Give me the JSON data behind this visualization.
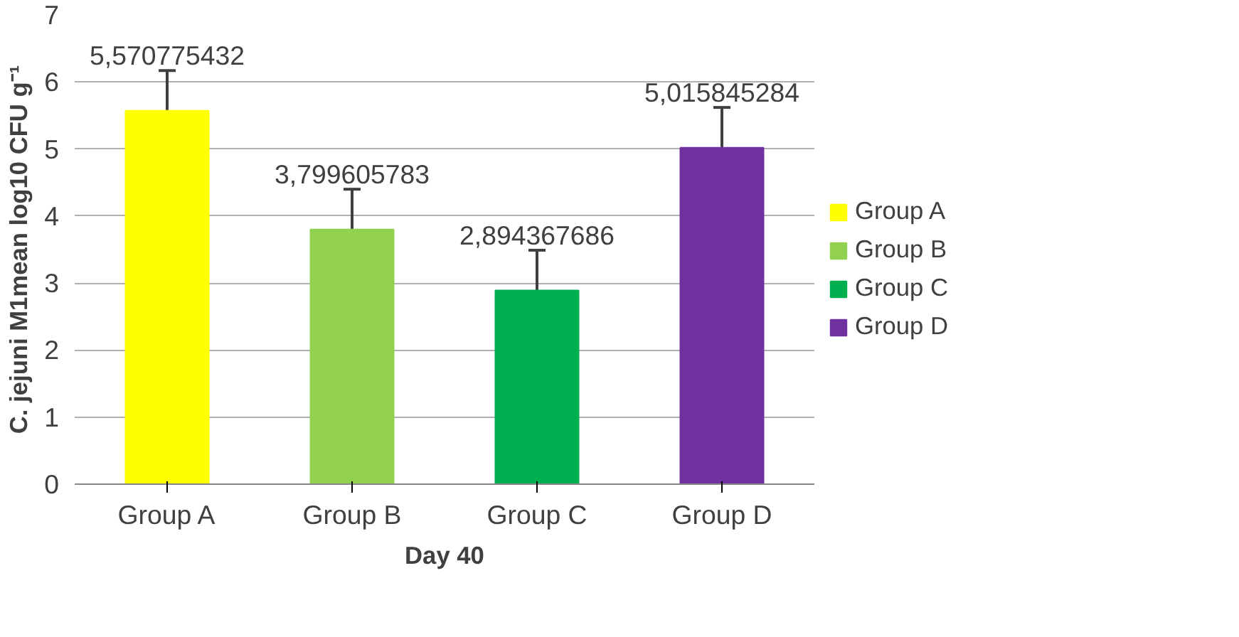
{
  "chart_data": {
    "type": "bar",
    "xlabel": "Day 40",
    "ylabel": "C. jejuni M1mean log10 CFU g⁻¹",
    "categories": [
      "Group A",
      "Group B",
      "Group C",
      "Group D"
    ],
    "series": [
      {
        "name": "Group A",
        "color": "#ffff00",
        "values": [
          5.57,
          null,
          null,
          null
        ],
        "errors": [
          0.6,
          null,
          null,
          null
        ],
        "value_labels": [
          "5,570775432",
          null,
          null,
          null
        ]
      },
      {
        "name": "Group B",
        "color": "#92d050",
        "values": [
          null,
          3.8,
          null,
          null
        ],
        "errors": [
          null,
          0.6,
          null,
          null
        ],
        "value_labels": [
          null,
          "3,799605783",
          null,
          null
        ]
      },
      {
        "name": "Group C",
        "color": "#00b050",
        "values": [
          null,
          null,
          2.89,
          null
        ],
        "errors": [
          null,
          null,
          0.6,
          null
        ],
        "value_labels": [
          null,
          null,
          "2,894367686",
          null
        ]
      },
      {
        "name": "Group D",
        "color": "#7030a0",
        "values": [
          null,
          null,
          null,
          5.02
        ],
        "errors": [
          null,
          null,
          null,
          0.6
        ],
        "value_labels": [
          null,
          null,
          null,
          "5,015845284"
        ]
      }
    ],
    "ylim": [
      0,
      7
    ],
    "yticks": [
      0,
      1,
      2,
      3,
      4,
      5,
      6,
      7
    ],
    "grid": "y",
    "legend": "right"
  }
}
